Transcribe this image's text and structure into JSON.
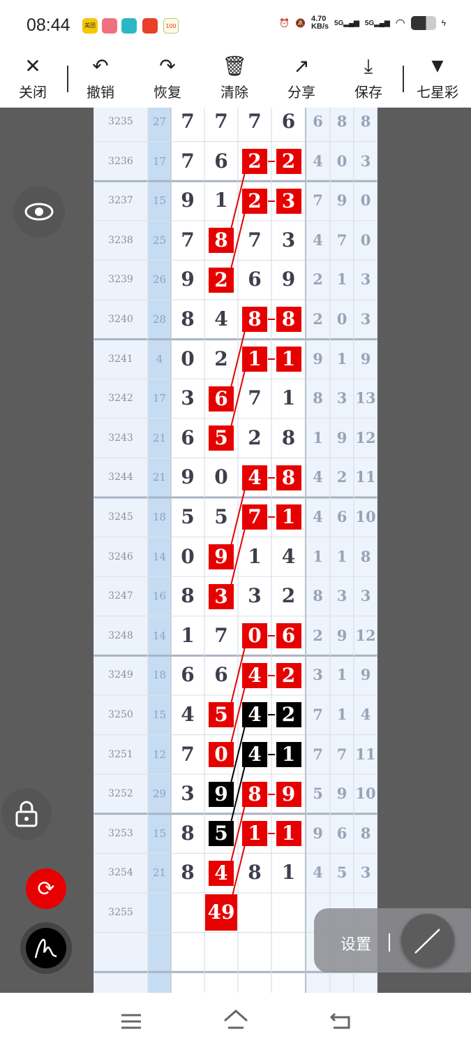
{
  "status": {
    "time": "08:44",
    "speed": "4.70",
    "speed_unit": "KB/s",
    "net1": "5G",
    "net2": "5G",
    "apps": [
      "美团",
      "",
      "",
      "",
      "100"
    ]
  },
  "toolbar": {
    "close": "关闭",
    "undo": "撤销",
    "redo": "恢复",
    "clear": "清除",
    "share": "分享",
    "save": "保存",
    "lottery": "七星彩"
  },
  "settings": {
    "label": "设置"
  },
  "colors": {
    "red": "#e60000",
    "black": "#000000",
    "accent_blue": "#c6dcf3"
  },
  "rows": [
    {
      "id": "3235",
      "sum": "27",
      "d": [
        "7",
        "7",
        "7",
        "6"
      ],
      "e": [
        "6",
        "8",
        "8"
      ],
      "hl": [
        "",
        "",
        "",
        ""
      ],
      "dash": false
    },
    {
      "id": "3236",
      "sum": "17",
      "d": [
        "7",
        "6",
        "2",
        "2"
      ],
      "e": [
        "4",
        "0",
        "3"
      ],
      "hl": [
        "",
        "",
        "r",
        "r"
      ],
      "dash": true
    },
    {
      "id": "3237",
      "sum": "15",
      "d": [
        "9",
        "1",
        "2",
        "3"
      ],
      "e": [
        "7",
        "9",
        "0"
      ],
      "hl": [
        "",
        "",
        "r",
        "r"
      ],
      "dash": true
    },
    {
      "id": "3238",
      "sum": "25",
      "d": [
        "7",
        "8",
        "7",
        "3"
      ],
      "e": [
        "4",
        "7",
        "0"
      ],
      "hl": [
        "",
        "r",
        "",
        ""
      ],
      "dash": false
    },
    {
      "id": "3239",
      "sum": "26",
      "d": [
        "9",
        "2",
        "6",
        "9"
      ],
      "e": [
        "2",
        "1",
        "3"
      ],
      "hl": [
        "",
        "r",
        "",
        ""
      ],
      "dash": false
    },
    {
      "id": "3240",
      "sum": "28",
      "d": [
        "8",
        "4",
        "8",
        "8"
      ],
      "e": [
        "2",
        "0",
        "3"
      ],
      "hl": [
        "",
        "",
        "r",
        "r"
      ],
      "dash": true
    },
    {
      "id": "3241",
      "sum": "4",
      "d": [
        "0",
        "2",
        "1",
        "1"
      ],
      "e": [
        "9",
        "1",
        "9"
      ],
      "hl": [
        "",
        "",
        "r",
        "r"
      ],
      "dash": true
    },
    {
      "id": "3242",
      "sum": "17",
      "d": [
        "3",
        "6",
        "7",
        "1"
      ],
      "e": [
        "8",
        "3",
        "13"
      ],
      "hl": [
        "",
        "r",
        "",
        ""
      ],
      "dash": false
    },
    {
      "id": "3243",
      "sum": "21",
      "d": [
        "6",
        "5",
        "2",
        "8"
      ],
      "e": [
        "1",
        "9",
        "12"
      ],
      "hl": [
        "",
        "r",
        "",
        ""
      ],
      "dash": false
    },
    {
      "id": "3244",
      "sum": "21",
      "d": [
        "9",
        "0",
        "4",
        "8"
      ],
      "e": [
        "4",
        "2",
        "11"
      ],
      "hl": [
        "",
        "",
        "r",
        "r"
      ],
      "dash": true
    },
    {
      "id": "3245",
      "sum": "18",
      "d": [
        "5",
        "5",
        "7",
        "1"
      ],
      "e": [
        "4",
        "6",
        "10"
      ],
      "hl": [
        "",
        "",
        "r",
        "r"
      ],
      "dash": true
    },
    {
      "id": "3246",
      "sum": "14",
      "d": [
        "0",
        "9",
        "1",
        "4"
      ],
      "e": [
        "1",
        "1",
        "8"
      ],
      "hl": [
        "",
        "r",
        "",
        ""
      ],
      "dash": false
    },
    {
      "id": "3247",
      "sum": "16",
      "d": [
        "8",
        "3",
        "3",
        "2"
      ],
      "e": [
        "8",
        "3",
        "3"
      ],
      "hl": [
        "",
        "r",
        "",
        ""
      ],
      "dash": false
    },
    {
      "id": "3248",
      "sum": "14",
      "d": [
        "1",
        "7",
        "0",
        "6"
      ],
      "e": [
        "2",
        "9",
        "12"
      ],
      "hl": [
        "",
        "",
        "r",
        "r"
      ],
      "dash": true
    },
    {
      "id": "3249",
      "sum": "18",
      "d": [
        "6",
        "6",
        "4",
        "2"
      ],
      "e": [
        "3",
        "1",
        "9"
      ],
      "hl": [
        "",
        "",
        "r",
        "r"
      ],
      "dash": true
    },
    {
      "id": "3250",
      "sum": "15",
      "d": [
        "4",
        "5",
        "4",
        "2"
      ],
      "e": [
        "7",
        "1",
        "4"
      ],
      "hl": [
        "",
        "r",
        "b",
        "b"
      ],
      "dash": true
    },
    {
      "id": "3251",
      "sum": "12",
      "d": [
        "7",
        "0",
        "4",
        "1"
      ],
      "e": [
        "7",
        "7",
        "11"
      ],
      "hl": [
        "",
        "r",
        "b",
        "b"
      ],
      "dash": true
    },
    {
      "id": "3252",
      "sum": "29",
      "d": [
        "3",
        "9",
        "8",
        "9"
      ],
      "e": [
        "5",
        "9",
        "10"
      ],
      "hl": [
        "",
        "b",
        "r",
        "r"
      ],
      "dash": true
    },
    {
      "id": "3253",
      "sum": "15",
      "d": [
        "8",
        "5",
        "1",
        "1"
      ],
      "e": [
        "9",
        "6",
        "8"
      ],
      "hl": [
        "",
        "b",
        "r",
        "r"
      ],
      "dash": true
    },
    {
      "id": "3254",
      "sum": "21",
      "d": [
        "8",
        "4",
        "8",
        "1"
      ],
      "e": [
        "4",
        "5",
        "3"
      ],
      "hl": [
        "",
        "r",
        "",
        ""
      ],
      "dash": false
    },
    {
      "id": "3255",
      "sum": "",
      "d": [
        "",
        "49",
        "",
        ""
      ],
      "e": [
        "",
        "",
        ""
      ],
      "hl": [
        "",
        "r",
        "",
        ""
      ],
      "dash": false
    },
    {
      "id": "",
      "sum": "",
      "d": [
        "",
        "",
        "",
        ""
      ],
      "e": [
        "",
        "",
        ""
      ],
      "hl": [
        "",
        "",
        "",
        ""
      ],
      "dash": false
    },
    {
      "id": "",
      "sum": "",
      "d": [
        "",
        "",
        "",
        ""
      ],
      "e": [
        "",
        "",
        ""
      ],
      "hl": [
        "",
        "",
        "",
        ""
      ],
      "dash": false
    }
  ]
}
